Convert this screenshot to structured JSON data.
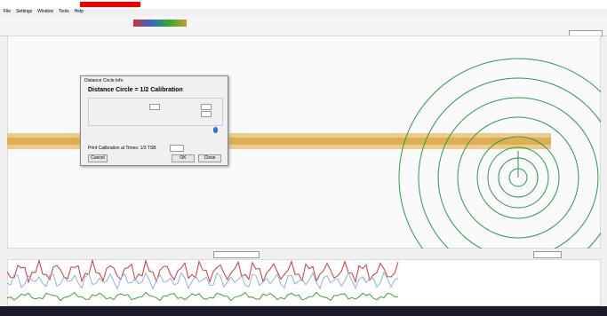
{
  "menu": [
    "File",
    "Settings",
    "Window",
    "Tools",
    "Help"
  ],
  "dialog": {
    "title": "Distance Circle Info",
    "heading": "Distance Circle = 1/2 Calibration",
    "print_label": "Print Calibration at Times: 1/3 TSB",
    "buttons": [
      "Cancel",
      "OK",
      "Close"
    ]
  }
}
